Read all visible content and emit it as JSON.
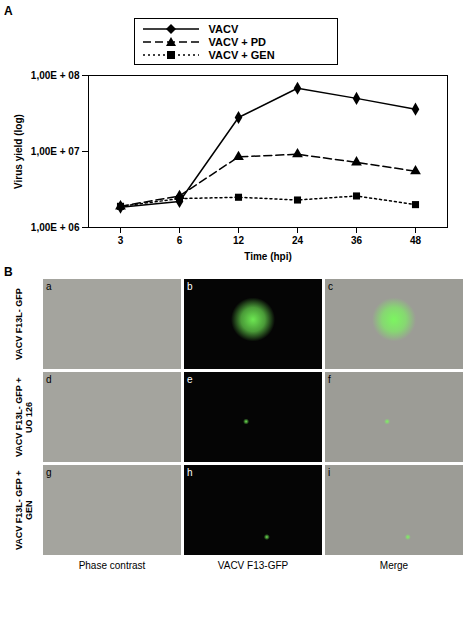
{
  "chart_data": {
    "panel_label": "A",
    "type": "line",
    "x_label": "Time (hpi)",
    "y_label": "Virus yield (log)",
    "categories": [
      "3",
      "6",
      "12",
      "24",
      "36",
      "48"
    ],
    "log": "y",
    "ylim": [
      1000000,
      100000000
    ],
    "yticks": [
      {
        "value": 1000000,
        "label": "1,00E + 06"
      },
      {
        "value": 10000000,
        "label": "1,00E + 07"
      },
      {
        "value": 100000000,
        "label": "1,00E + 08"
      }
    ],
    "grid": false,
    "legend": "top",
    "series": [
      {
        "name": "VACV",
        "color": "#000000",
        "marker": "diamond",
        "line_style": "solid",
        "values": [
          1850000,
          2200000,
          28000000,
          68000000,
          50000000,
          36000000
        ]
      },
      {
        "name": "VACV + PD",
        "color": "#000000",
        "marker": "triangle",
        "line_style": "dashed",
        "values": [
          1900000,
          2600000,
          8500000,
          9200000,
          7200000,
          5500000
        ]
      },
      {
        "name": "VACV + GEN",
        "color": "#000000",
        "marker": "square",
        "line_style": "dotted",
        "values": [
          1900000,
          2400000,
          2500000,
          2300000,
          2600000,
          2000000
        ]
      }
    ]
  },
  "panel_b": {
    "panel_label": "B",
    "rows": [
      {
        "label": "VACV F13L- GFP",
        "cells": [
          "a",
          "b",
          "c"
        ]
      },
      {
        "label": "VACV F13L- GFP + UO 126",
        "cells": [
          "d",
          "e",
          "f"
        ]
      },
      {
        "label": "VACV F13L- GFP + GEN",
        "cells": [
          "g",
          "h",
          "i"
        ]
      }
    ],
    "columns": [
      "Phase contrast",
      "VACV F13-GFP",
      "Merge"
    ]
  }
}
